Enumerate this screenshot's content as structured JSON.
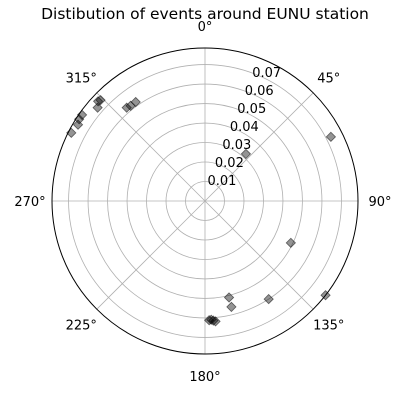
{
  "chart_data": {
    "type": "scatter",
    "projection": "polar",
    "title": "Distibution of events around EUNU station",
    "theta_zero_location": "N",
    "theta_direction": "clockwise",
    "theta_ticks": [
      "0°",
      "45°",
      "90°",
      "135°",
      "180°",
      "225°",
      "270°",
      "315°"
    ],
    "r_ticks": [
      "0.01",
      "0.02",
      "0.03",
      "0.04",
      "0.05",
      "0.06",
      "0.07"
    ],
    "rlim": [
      0,
      0.0785
    ],
    "grid": true,
    "marker": "diamond",
    "marker_color": "#000000",
    "series": [
      {
        "points": [
          {
            "theta": 41,
            "r": 0.032
          },
          {
            "theta": 63,
            "r": 0.0725
          },
          {
            "theta": 116,
            "r": 0.049
          },
          {
            "theta": 128,
            "r": 0.0785
          },
          {
            "theta": 147,
            "r": 0.06
          },
          {
            "theta": 166,
            "r": 0.056
          },
          {
            "theta": 166,
            "r": 0.051
          },
          {
            "theta": 175,
            "r": 0.062
          },
          {
            "theta": 176,
            "r": 0.0615
          },
          {
            "theta": 177,
            "r": 0.061
          },
          {
            "theta": 178,
            "r": 0.0612
          },
          {
            "theta": 320,
            "r": 0.0625
          },
          {
            "theta": 322,
            "r": 0.062
          },
          {
            "theta": 325,
            "r": 0.062
          },
          {
            "theta": 313,
            "r": 0.075
          },
          {
            "theta": 314,
            "r": 0.0745
          },
          {
            "theta": 311,
            "r": 0.073
          },
          {
            "theta": 305,
            "r": 0.077
          },
          {
            "theta": 303,
            "r": 0.077
          },
          {
            "theta": 301,
            "r": 0.076
          },
          {
            "theta": 297,
            "r": 0.077
          }
        ]
      }
    ]
  }
}
